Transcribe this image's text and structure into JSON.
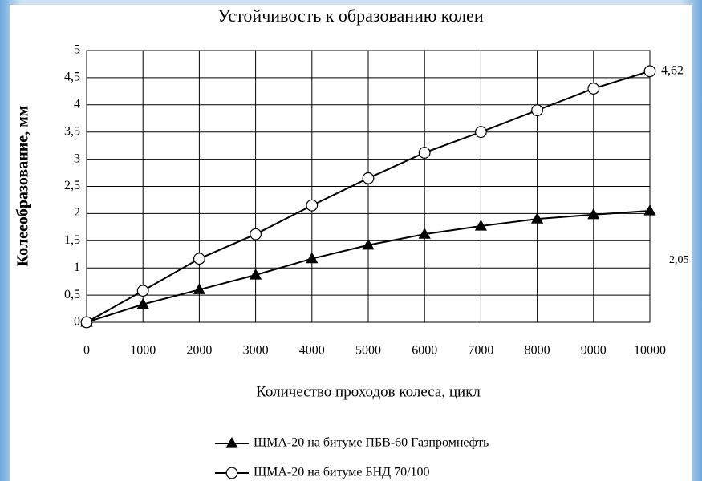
{
  "chart_data": {
    "type": "line",
    "title": "Устойчивость к образованию колеи",
    "xlabel": "Количество проходов колеса, цикл",
    "ylabel": "Колееобразование, мм",
    "x": [
      0,
      1000,
      2000,
      3000,
      4000,
      5000,
      6000,
      7000,
      8000,
      9000,
      10000
    ],
    "series": [
      {
        "name": "ЩМА-20 на битуме ПБВ-60 Газпромнефть",
        "color": "#000000",
        "marker": "triangle",
        "values": [
          0,
          0.33,
          0.6,
          0.87,
          1.17,
          1.42,
          1.62,
          1.77,
          1.9,
          1.98,
          2.05
        ],
        "value_labels": [
          null,
          null,
          null,
          null,
          null,
          null,
          null,
          null,
          null,
          null,
          "2,05"
        ]
      },
      {
        "name": "ЩМА-20 на битуме БНД 70/100",
        "color": "#000000",
        "marker": "circle",
        "values": [
          0,
          0.58,
          1.17,
          1.62,
          2.15,
          2.65,
          3.12,
          3.5,
          3.9,
          4.3,
          4.62
        ],
        "value_labels": [
          null,
          null,
          null,
          null,
          null,
          null,
          null,
          null,
          null,
          null,
          "4,62"
        ]
      }
    ],
    "xlim": [
      0,
      10000
    ],
    "xticks": [
      0,
      1000,
      2000,
      3000,
      4000,
      5000,
      6000,
      7000,
      8000,
      9000,
      10000
    ],
    "ylim": [
      0,
      5
    ],
    "yticks": [
      0,
      {
        "value": 0.5,
        "label": "0,5"
      },
      1,
      {
        "value": 1.5,
        "label": "1,5"
      },
      2,
      {
        "value": 2.5,
        "label": "2,5"
      },
      3,
      {
        "value": 3.5,
        "label": "3,5"
      },
      4,
      {
        "value": 4.5,
        "label": "4,5"
      },
      5
    ],
    "grid": true,
    "legend": "bottom"
  }
}
